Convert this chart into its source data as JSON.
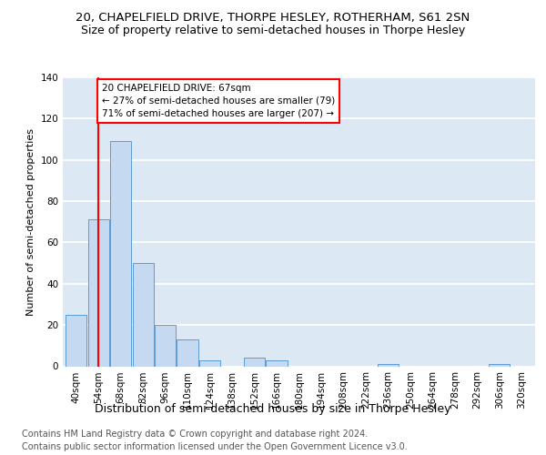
{
  "title1": "20, CHAPELFIELD DRIVE, THORPE HESLEY, ROTHERHAM, S61 2SN",
  "title2": "Size of property relative to semi-detached houses in Thorpe Hesley",
  "xlabel": "Distribution of semi-detached houses by size in Thorpe Hesley",
  "ylabel": "Number of semi-detached properties",
  "footer1": "Contains HM Land Registry data © Crown copyright and database right 2024.",
  "footer2": "Contains public sector information licensed under the Open Government Licence v3.0.",
  "categories": [
    "40sqm",
    "54sqm",
    "68sqm",
    "82sqm",
    "96sqm",
    "110sqm",
    "124sqm",
    "138sqm",
    "152sqm",
    "166sqm",
    "180sqm",
    "194sqm",
    "208sqm",
    "222sqm",
    "236sqm",
    "250sqm",
    "264sqm",
    "278sqm",
    "292sqm",
    "306sqm",
    "320sqm"
  ],
  "values": [
    25,
    71,
    109,
    50,
    20,
    13,
    3,
    0,
    4,
    3,
    0,
    0,
    0,
    0,
    1,
    0,
    0,
    0,
    0,
    1,
    0
  ],
  "bar_color": "#c5d9f0",
  "bar_edge_color": "#5b9bd5",
  "property_bin_index": 1,
  "vline_color": "#ff0000",
  "annotation_text": "20 CHAPELFIELD DRIVE: 67sqm\n← 27% of semi-detached houses are smaller (79)\n71% of semi-detached houses are larger (207) →",
  "annotation_box_color": "#ffffff",
  "annotation_box_edge": "#ff0000",
  "ylim": [
    0,
    140
  ],
  "yticks": [
    0,
    20,
    40,
    60,
    80,
    100,
    120,
    140
  ],
  "background_color": "#dce9f5",
  "grid_color": "#ffffff",
  "title1_fontsize": 9.5,
  "title2_fontsize": 9,
  "xlabel_fontsize": 9,
  "ylabel_fontsize": 8,
  "tick_fontsize": 7.5,
  "footer_fontsize": 7
}
